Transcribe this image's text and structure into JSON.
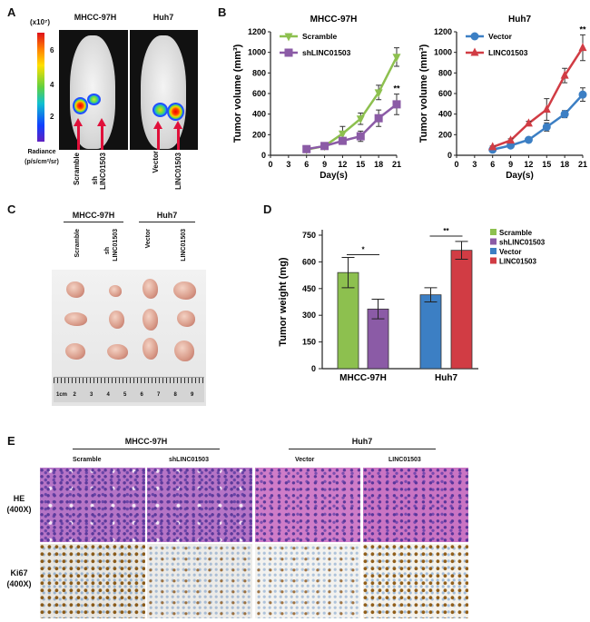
{
  "panels": {
    "A": {
      "label": "A",
      "scale_unit": "(x10⁷)",
      "colorbar_ticks": [
        "6",
        "4",
        "2"
      ],
      "radiance_label": "Radiance",
      "radiance_unit": "(p/s/cm²/sr)",
      "groups": [
        "MHCC-97H",
        "Huh7"
      ],
      "arrow_labels": [
        "Scramble",
        "sh",
        "LINC01503",
        "Vector",
        "LINC01503"
      ]
    },
    "B": {
      "label": "B"
    },
    "C": {
      "label": "C",
      "groups": [
        "MHCC-97H",
        "Huh7"
      ],
      "columns": [
        "Scramble",
        "sh",
        "LINC01503",
        "Vector",
        "LINC01503"
      ],
      "ruler_labels": [
        "1cm",
        "2",
        "3",
        "4",
        "5",
        "6",
        "7",
        "8",
        "9"
      ]
    },
    "D": {
      "label": "D"
    },
    "E": {
      "label": "E",
      "groups": [
        "MHCC-97H",
        "Huh7"
      ],
      "columns": [
        "Scramble",
        "shLINC01503",
        "Vector",
        "LINC01503"
      ],
      "rows": [
        {
          "name": "HE",
          "mag": "(400X)"
        },
        {
          "name": "Ki67",
          "mag": "(400X)"
        }
      ]
    }
  },
  "colors": {
    "scramble": "#8dc04f",
    "shLINC01503": "#8b5ba6",
    "vector": "#3c7fc4",
    "LINC01503": "#d13c44"
  },
  "chart_data": [
    {
      "type": "line",
      "title": "MHCC-97H",
      "xlabel": "Day(s)",
      "ylabel": "Tumor volume (mm³)",
      "xlim": [
        0,
        21
      ],
      "ylim": [
        0,
        1200
      ],
      "xticks": [
        0,
        3,
        6,
        9,
        12,
        15,
        18,
        21
      ],
      "yticks": [
        0,
        200,
        400,
        600,
        800,
        1000,
        1200
      ],
      "legend": "top-left",
      "x": [
        6,
        9,
        12,
        15,
        18,
        21
      ],
      "series": [
        {
          "name": "Scramble",
          "marker": "triangle-down",
          "color": "#8dc04f",
          "values": [
            55,
            90,
            210,
            355,
            610,
            955
          ],
          "errors": [
            20,
            20,
            70,
            55,
            70,
            90
          ]
        },
        {
          "name": "shLINC01503",
          "marker": "square",
          "color": "#8b5ba6",
          "values": [
            60,
            90,
            140,
            185,
            360,
            495
          ],
          "errors": [
            15,
            15,
            20,
            50,
            80,
            100
          ]
        }
      ],
      "annotations": [
        {
          "x": 21,
          "text": "**"
        }
      ]
    },
    {
      "type": "line",
      "title": "Huh7",
      "xlabel": "Day(s)",
      "ylabel": "Tumor volume (mm³)",
      "xlim": [
        0,
        21
      ],
      "ylim": [
        0,
        1200
      ],
      "xticks": [
        0,
        3,
        6,
        9,
        12,
        15,
        18,
        21
      ],
      "yticks": [
        0,
        200,
        400,
        600,
        800,
        1000,
        1200
      ],
      "legend": "top-left",
      "x": [
        6,
        9,
        12,
        15,
        18,
        21
      ],
      "series": [
        {
          "name": "Vector",
          "marker": "circle",
          "color": "#3c7fc4",
          "values": [
            55,
            95,
            150,
            275,
            400,
            590
          ],
          "errors": [
            10,
            15,
            15,
            40,
            35,
            65
          ]
        },
        {
          "name": "LINC01503",
          "marker": "triangle-up",
          "color": "#d13c44",
          "values": [
            80,
            145,
            310,
            445,
            775,
            1045
          ],
          "errors": [
            10,
            15,
            20,
            105,
            70,
            125
          ]
        }
      ],
      "annotations": [
        {
          "x": 21,
          "text": "**"
        }
      ]
    },
    {
      "type": "bar",
      "ylabel": "Tumor weight (mg)",
      "ylim": [
        0,
        750
      ],
      "yticks": [
        0,
        150,
        300,
        450,
        600,
        750
      ],
      "categories": [
        "MHCC-97H",
        "Huh7"
      ],
      "legend": "right",
      "bars": [
        {
          "name": "Scramble",
          "category": "MHCC-97H",
          "value": 540,
          "error": 85,
          "color": "#8dc04f"
        },
        {
          "name": "shLINC01503",
          "category": "MHCC-97H",
          "value": 335,
          "error": 55,
          "color": "#8b5ba6"
        },
        {
          "name": "Vector",
          "category": "Huh7",
          "value": 415,
          "error": 40,
          "color": "#3c7fc4"
        },
        {
          "name": "LINC01503",
          "category": "Huh7",
          "value": 665,
          "error": 50,
          "color": "#d13c44"
        }
      ],
      "significance": [
        {
          "category": "MHCC-97H",
          "text": "*"
        },
        {
          "category": "Huh7",
          "text": "**"
        }
      ]
    }
  ]
}
